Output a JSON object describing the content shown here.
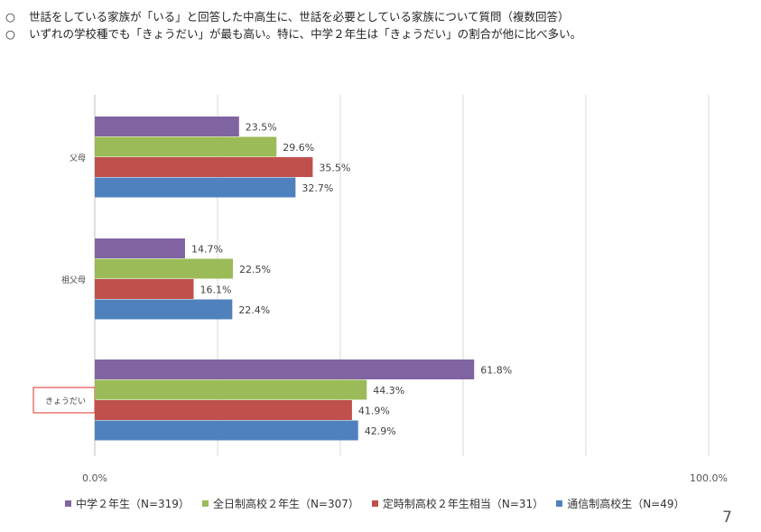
{
  "header": {
    "bullets": [
      {
        "mark": "○",
        "text": "世話をしている家族が「いる」と回答した中高生に、世話を必要としている家族について質問（複数回答）"
      },
      {
        "mark": "○",
        "text": "いずれの学校種でも「きょうだい」が最も高い。特に、中学２年生は「きょうだい」の割合が他に比べ多い。"
      }
    ]
  },
  "page_number": "7",
  "colors": {
    "series": [
      "#8064a2",
      "#9bbb59",
      "#c0504d",
      "#4f81bd"
    ],
    "highlight_box": "#e0302a",
    "gridline": "#d9d9d9",
    "axis": "#bfbfbf"
  },
  "chart_data": {
    "type": "bar",
    "orientation": "horizontal",
    "categories": [
      "父母",
      "祖父母",
      "きょうだい"
    ],
    "highlighted_category": "きょうだい",
    "series": [
      {
        "name": "中学２年生（N=319）",
        "values": [
          23.5,
          14.7,
          61.8
        ]
      },
      {
        "name": "全日制高校２年生（N=307）",
        "values": [
          29.6,
          22.5,
          44.3
        ]
      },
      {
        "name": "定時制高校２年生相当（N=31）",
        "values": [
          35.5,
          16.1,
          41.9
        ]
      },
      {
        "name": "通信制高校生（N=49）",
        "values": [
          32.7,
          22.4,
          42.9
        ]
      }
    ],
    "value_labels": [
      [
        "23.5%",
        "14.7%",
        "61.8%"
      ],
      [
        "29.6%",
        "22.5%",
        "44.3%"
      ],
      [
        "35.5%",
        "16.1%",
        "41.9%"
      ],
      [
        "32.7%",
        "22.4%",
        "42.9%"
      ]
    ],
    "x_tick_labels": [
      "0.0%",
      "100.0%"
    ],
    "xlim": [
      0,
      100
    ],
    "grid": true,
    "legend_position": "bottom"
  }
}
